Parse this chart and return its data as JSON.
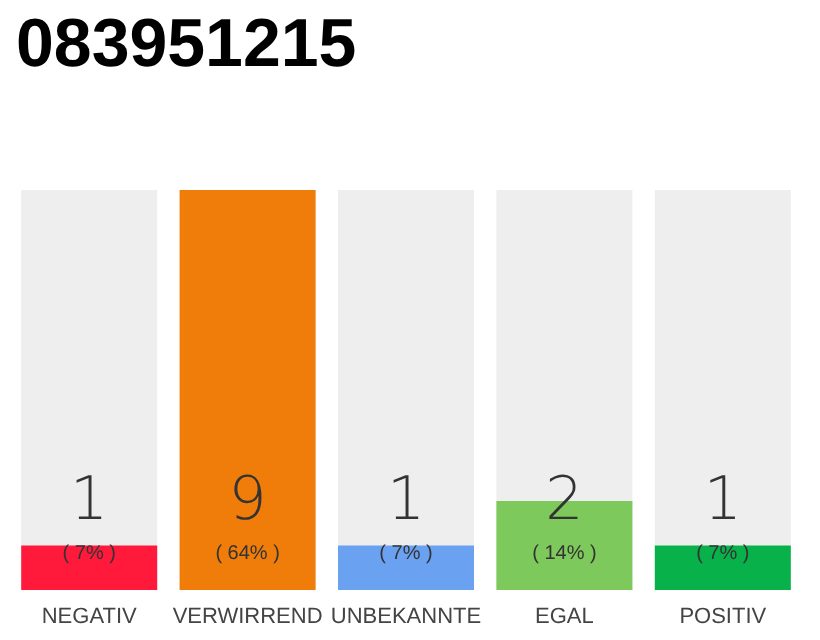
{
  "chart_data": {
    "type": "bar",
    "title": "083951215",
    "categories": [
      "NEGATIV",
      "VERWIRREND",
      "UNBEKANNTE",
      "EGAL",
      "POSITIV"
    ],
    "values": [
      1,
      9,
      1,
      2,
      1
    ],
    "colors": [
      "#ff1a3c",
      "#f07d0a",
      "#6aa1f0",
      "#7ec95c",
      "#09b14a"
    ],
    "ylim": [
      0,
      9
    ],
    "tick_labels": "x",
    "data_labels": true,
    "grid": false,
    "annotations": [
      "( 7% )",
      "( 64% )",
      "( 7% )",
      "( 14% )",
      "( 7% )"
    ]
  }
}
